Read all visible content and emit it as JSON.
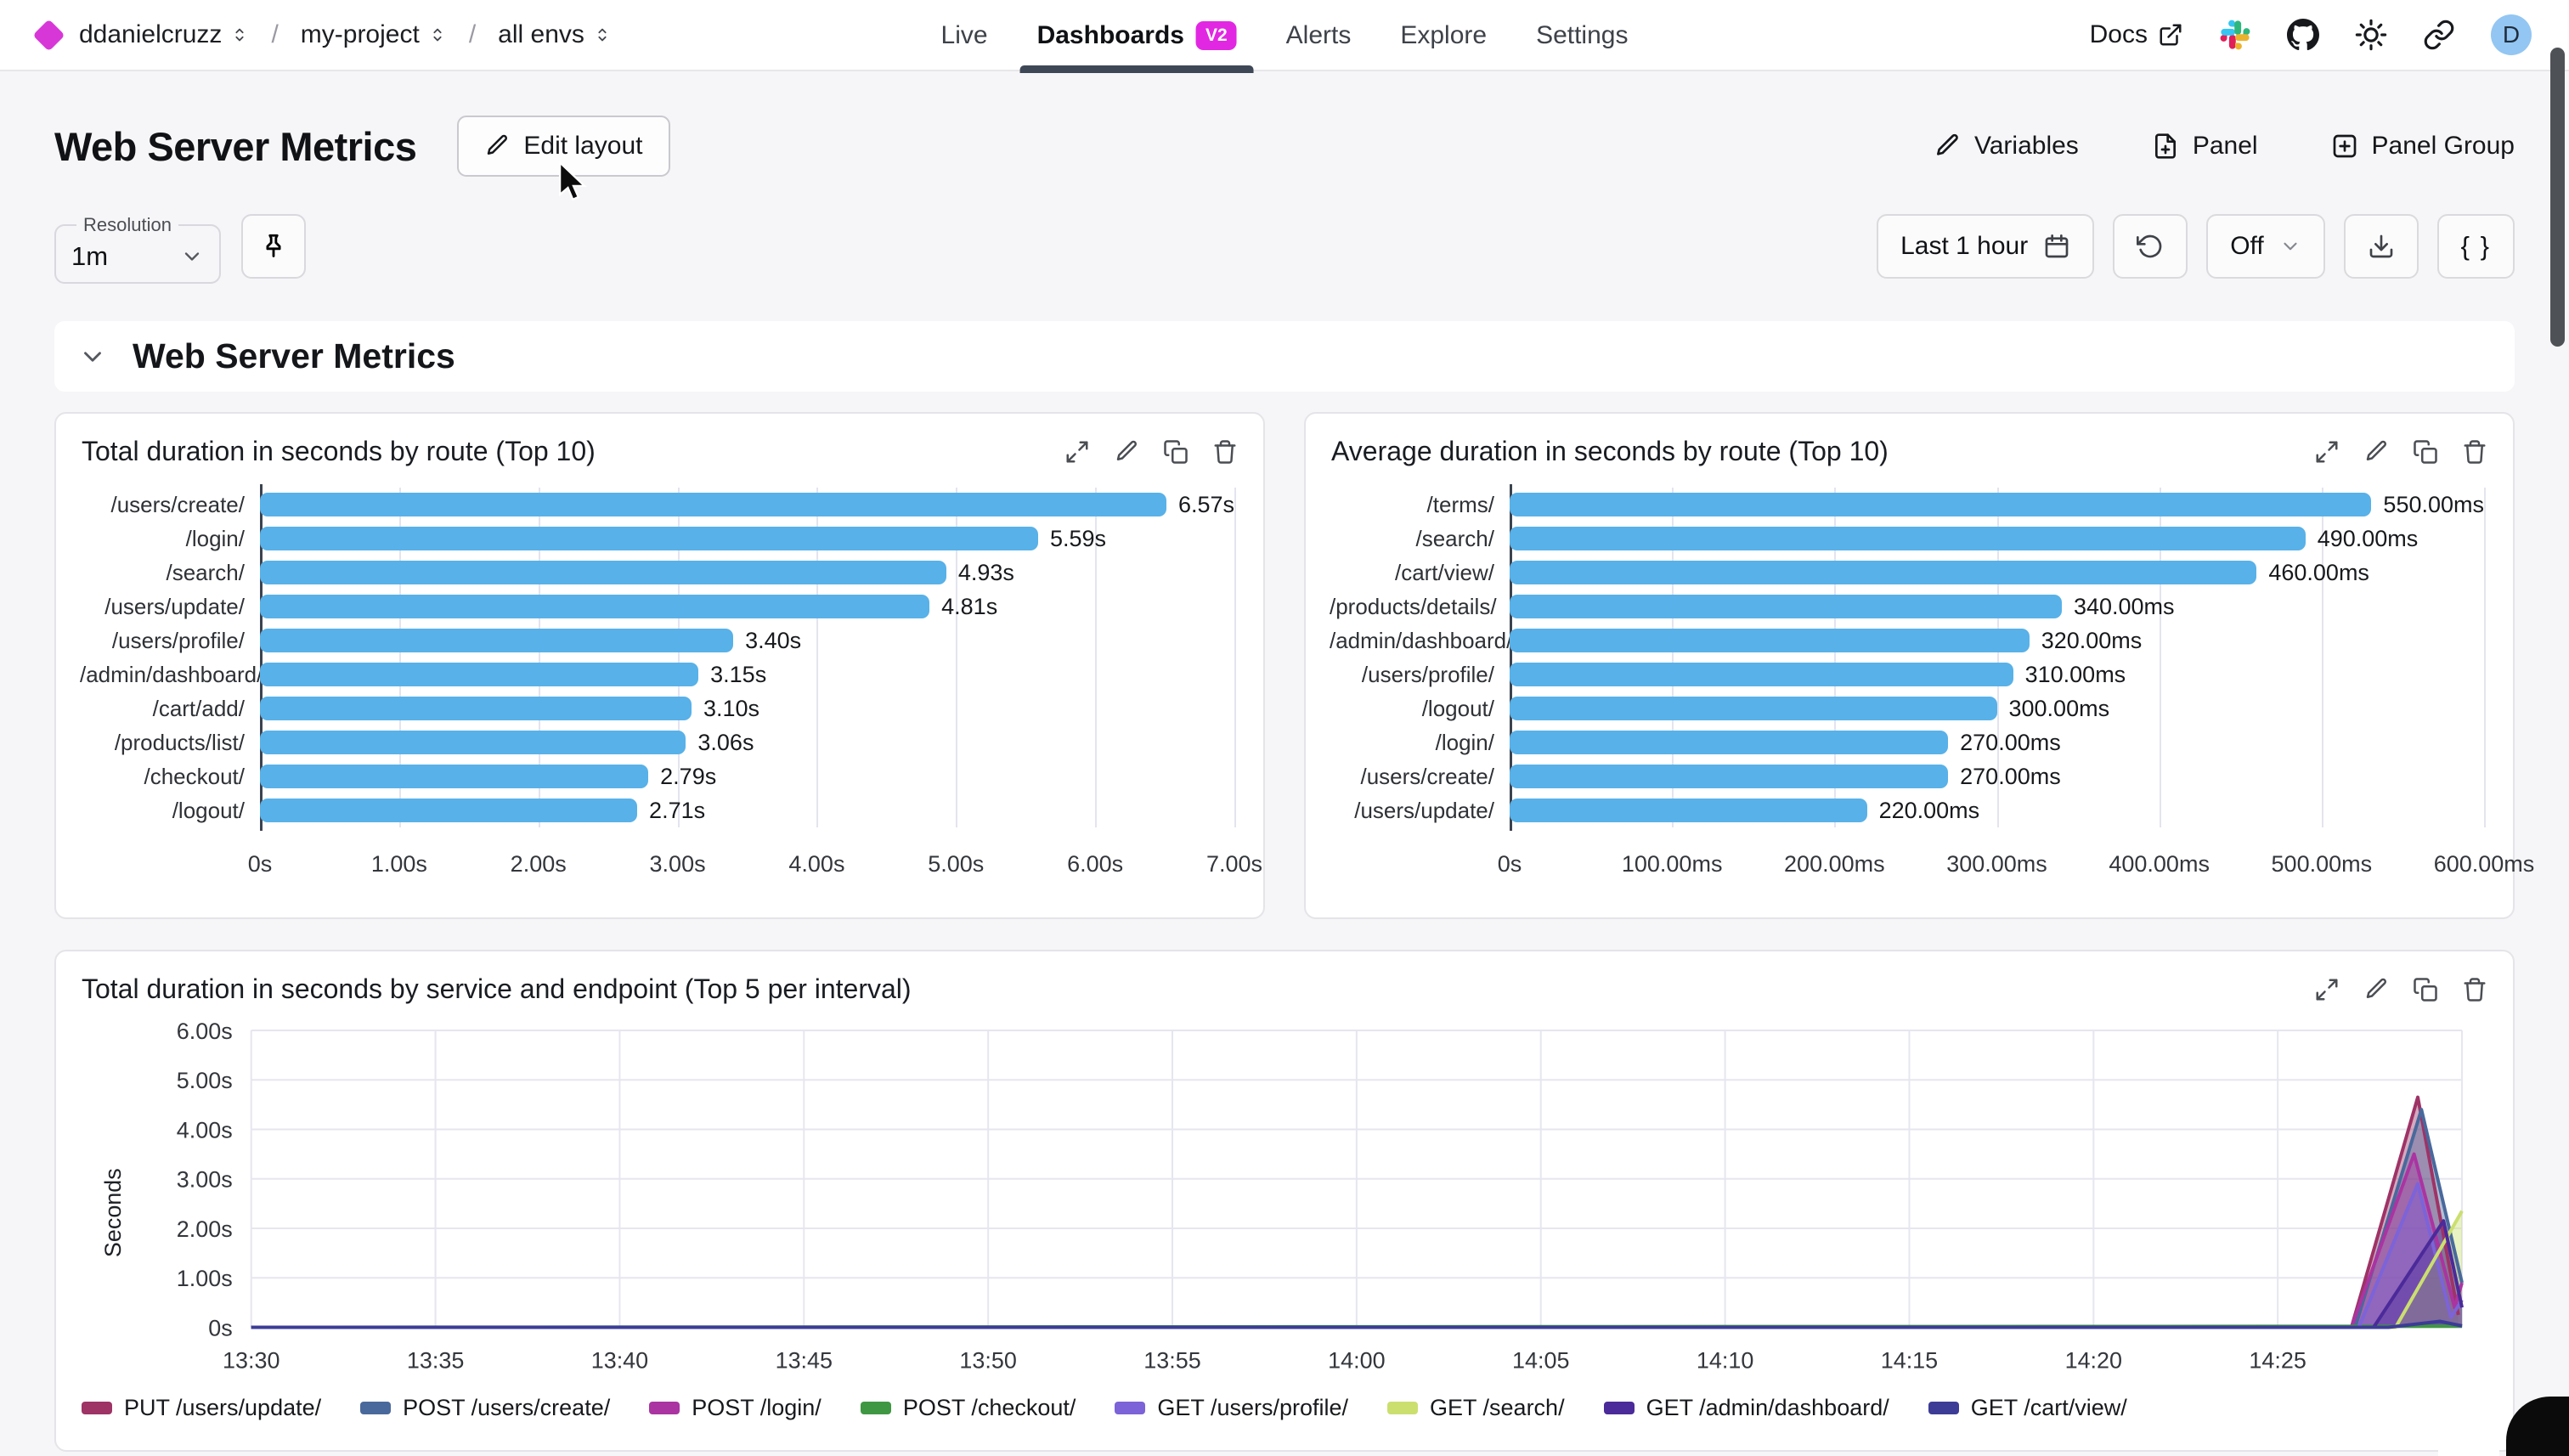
{
  "topbar": {
    "breadcrumb": [
      {
        "label": "ddanielcruzz"
      },
      {
        "label": "my-project"
      },
      {
        "label": "all envs"
      }
    ],
    "nav": [
      {
        "label": "Live",
        "active": false
      },
      {
        "label": "Dashboards",
        "badge": "V2",
        "active": true
      },
      {
        "label": "Alerts",
        "active": false
      },
      {
        "label": "Explore",
        "active": false
      },
      {
        "label": "Settings",
        "active": false
      }
    ],
    "docs_label": "Docs",
    "icons": [
      "external-link-icon",
      "slack-icon",
      "github-icon",
      "sun-icon",
      "link-icon"
    ],
    "avatar_initial": "D"
  },
  "header": {
    "title": "Web Server Metrics",
    "edit_layout_label": "Edit layout",
    "actions": [
      {
        "label": "Variables",
        "icon": "pencil-icon"
      },
      {
        "label": "Panel",
        "icon": "file-plus-icon"
      },
      {
        "label": "Panel Group",
        "icon": "square-plus-icon"
      }
    ]
  },
  "toolbar": {
    "resolution_label": "Resolution",
    "resolution_value": "1m",
    "pin_icon": "pin-icon",
    "time_range_label": "Last 1 hour",
    "time_range_icon": "calendar-icon",
    "refresh_icon": "rotate-ccw-icon",
    "auto_refresh_label": "Off",
    "download_icon": "download-icon",
    "braces_label": "{ }"
  },
  "section": {
    "title": "Web Server Metrics"
  },
  "panel_actions": [
    "expand-icon",
    "edit-icon",
    "duplicate-icon",
    "delete-icon"
  ],
  "colors": {
    "accent_magenta": "#d837d8",
    "badge_magenta": "#e227e2",
    "active_tab_underline": "#3e4756",
    "bar_blue": "#58b1e8",
    "avatar_blue": "#93c6f2"
  },
  "chart_data": [
    {
      "type": "bar",
      "orientation": "horizontal",
      "title": "Total duration in seconds by route (Top 10)",
      "categories": [
        "/users/create/",
        "/login/",
        "/search/",
        "/users/update/",
        "/users/profile/",
        "/admin/dashboard/",
        "/cart/add/",
        "/products/list/",
        "/checkout/",
        "/logout/"
      ],
      "values": [
        6.57,
        5.59,
        4.93,
        4.81,
        3.4,
        3.15,
        3.1,
        3.06,
        2.79,
        2.71
      ],
      "value_labels": [
        "6.57s",
        "5.59s",
        "4.93s",
        "4.81s",
        "3.40s",
        "3.15s",
        "3.10s",
        "3.06s",
        "2.79s",
        "2.71s"
      ],
      "xticks": [
        "0s",
        "1.00s",
        "2.00s",
        "3.00s",
        "4.00s",
        "5.00s",
        "6.00s",
        "7.00s"
      ],
      "xmax": 7,
      "bar_color": "#58b1e8",
      "grid": true
    },
    {
      "type": "bar",
      "orientation": "horizontal",
      "title": "Average duration in seconds by route (Top 10)",
      "categories": [
        "/terms/",
        "/search/",
        "/cart/view/",
        "/products/details/",
        "/admin/dashboard/",
        "/users/profile/",
        "/logout/",
        "/login/",
        "/users/create/",
        "/users/update/"
      ],
      "values": [
        550,
        490,
        460,
        340,
        320,
        310,
        300,
        270,
        270,
        220
      ],
      "value_labels": [
        "550.00ms",
        "490.00ms",
        "460.00ms",
        "340.00ms",
        "320.00ms",
        "310.00ms",
        "300.00ms",
        "270.00ms",
        "270.00ms",
        "220.00ms"
      ],
      "xticks": [
        "0s",
        "100.00ms",
        "200.00ms",
        "300.00ms",
        "400.00ms",
        "500.00ms",
        "600.00ms"
      ],
      "xmax": 600,
      "bar_color": "#58b1e8",
      "grid": true
    },
    {
      "type": "area",
      "title": "Total duration in seconds by service and endpoint (Top 5 per interval)",
      "ylabel": "Seconds",
      "yticks": [
        "0s",
        "1.00s",
        "2.00s",
        "3.00s",
        "4.00s",
        "5.00s",
        "6.00s"
      ],
      "ylim": [
        0,
        6
      ],
      "x_minutes_range": [
        0,
        60
      ],
      "xtick_minutes": [
        0,
        5,
        10,
        15,
        20,
        25,
        30,
        35,
        40,
        45,
        50,
        55
      ],
      "xtick_labels": [
        "13:30",
        "13:35",
        "13:40",
        "13:45",
        "13:50",
        "13:55",
        "14:00",
        "14:05",
        "14:10",
        "14:15",
        "14:20",
        "14:25"
      ],
      "grid": true,
      "legend_position": "bottom",
      "series": [
        {
          "name": "PUT /users/update/",
          "color": "#9e3366",
          "points": [
            [
              0,
              0
            ],
            [
              57,
              0
            ],
            [
              58.8,
              4.65
            ],
            [
              59.9,
              0.25
            ]
          ]
        },
        {
          "name": "POST /users/create/",
          "color": "#49699c",
          "points": [
            [
              0,
              0
            ],
            [
              57.1,
              0
            ],
            [
              58.9,
              4.4
            ],
            [
              60,
              0.9
            ]
          ]
        },
        {
          "name": "POST /login/",
          "color": "#aa34a1",
          "points": [
            [
              0,
              0
            ],
            [
              57,
              0
            ],
            [
              58.7,
              3.5
            ],
            [
              59.8,
              0.4
            ],
            [
              60,
              0.9
            ]
          ]
        },
        {
          "name": "POST /checkout/",
          "color": "#3f9743",
          "points": [
            [
              0,
              0
            ],
            [
              60,
              0.02
            ]
          ]
        },
        {
          "name": "GET /users/profile/",
          "color": "#7c63d8",
          "points": [
            [
              0,
              0
            ],
            [
              57.2,
              0
            ],
            [
              58.8,
              2.9
            ],
            [
              59.7,
              0.2
            ],
            [
              60,
              0.55
            ]
          ]
        },
        {
          "name": "GET /search/",
          "color": "#cbdf6f",
          "points": [
            [
              0,
              0
            ],
            [
              58.2,
              0
            ],
            [
              60,
              2.35
            ]
          ]
        },
        {
          "name": "GET /admin/dashboard/",
          "color": "#4b2a99",
          "points": [
            [
              0,
              0
            ],
            [
              57.6,
              0
            ],
            [
              59.5,
              2.15
            ],
            [
              60,
              0.4
            ]
          ]
        },
        {
          "name": "GET /cart/view/",
          "color": "#3c3c97",
          "points": [
            [
              0,
              0
            ],
            [
              58,
              0
            ],
            [
              59.4,
              0.12
            ],
            [
              60,
              0.03
            ]
          ]
        }
      ]
    }
  ]
}
